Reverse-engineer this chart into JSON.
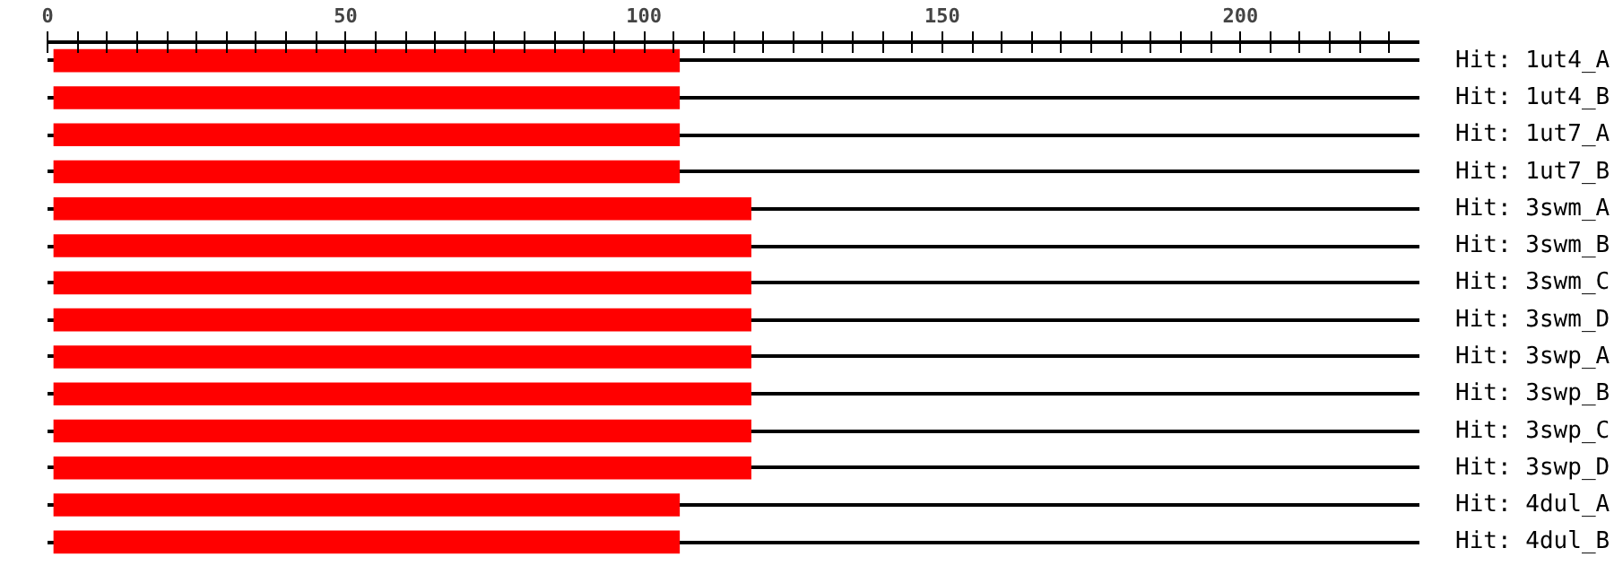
{
  "chart_data": {
    "type": "bar",
    "orientation": "horizontal",
    "categories": [
      "Hit: 1ut4_A",
      "Hit: 1ut4_B",
      "Hit: 1ut7_A",
      "Hit: 1ut7_B",
      "Hit: 3swm_A",
      "Hit: 3swm_B",
      "Hit: 3swm_C",
      "Hit: 3swm_D",
      "Hit: 3swp_A",
      "Hit: 3swp_B",
      "Hit: 3swp_C",
      "Hit: 3swp_D",
      "Hit: 4dul_A",
      "Hit: 4dul_B"
    ],
    "values": [
      105,
      105,
      105,
      105,
      117,
      117,
      117,
      117,
      117,
      117,
      117,
      117,
      105,
      105
    ],
    "base": [
      1,
      1,
      1,
      1,
      1,
      1,
      1,
      1,
      1,
      1,
      1,
      1,
      1,
      1
    ],
    "color": "#ff0000",
    "xlim": [
      0,
      230
    ],
    "xticks": [
      0,
      {
        "value": 5,
        "label": null
      },
      {
        "value": 10,
        "label": null
      },
      {
        "value": 15,
        "label": null
      },
      {
        "value": 20,
        "label": null
      },
      {
        "value": 25,
        "label": null
      },
      {
        "value": 30,
        "label": null
      },
      {
        "value": 35,
        "label": null
      },
      {
        "value": 40,
        "label": null
      },
      {
        "value": 45,
        "label": null
      },
      50,
      {
        "value": 55,
        "label": null
      },
      {
        "value": 60,
        "label": null
      },
      {
        "value": 65,
        "label": null
      },
      {
        "value": 70,
        "label": null
      },
      {
        "value": 75,
        "label": null
      },
      {
        "value": 80,
        "label": null
      },
      {
        "value": 85,
        "label": null
      },
      {
        "value": 90,
        "label": null
      },
      {
        "value": 95,
        "label": null
      },
      100,
      {
        "value": 105,
        "label": null
      },
      {
        "value": 110,
        "label": null
      },
      {
        "value": 115,
        "label": null
      },
      {
        "value": 120,
        "label": null
      },
      {
        "value": 125,
        "label": null
      },
      {
        "value": 130,
        "label": null
      },
      {
        "value": 135,
        "label": null
      },
      {
        "value": 140,
        "label": null
      },
      {
        "value": 145,
        "label": null
      },
      150,
      {
        "value": 155,
        "label": null
      },
      {
        "value": 160,
        "label": null
      },
      {
        "value": 165,
        "label": null
      },
      {
        "value": 170,
        "label": null
      },
      {
        "value": 175,
        "label": null
      },
      {
        "value": 180,
        "label": null
      },
      {
        "value": 185,
        "label": null
      },
      {
        "value": 190,
        "label": null
      },
      {
        "value": 195,
        "label": null
      },
      200,
      {
        "value": 205,
        "label": null
      },
      {
        "value": 210,
        "label": null
      },
      {
        "value": 215,
        "label": null
      },
      {
        "value": 220,
        "label": null
      },
      {
        "value": 225,
        "label": null
      }
    ],
    "grid": "y"
  }
}
